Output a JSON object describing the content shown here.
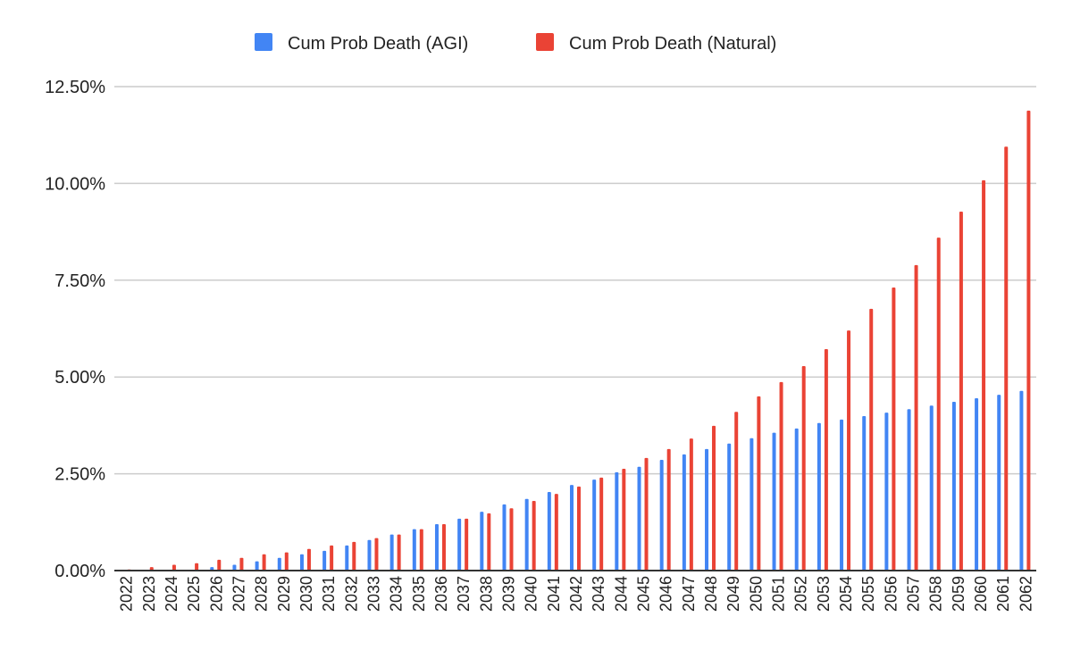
{
  "chart_data": {
    "type": "bar",
    "title": "",
    "xlabel": "",
    "ylabel": "",
    "ylim": [
      0,
      12.5
    ],
    "yticks": [
      "0.00%",
      "2.50%",
      "5.00%",
      "7.50%",
      "10.00%",
      "12.50%"
    ],
    "ytick_values": [
      0,
      2.5,
      5,
      7.5,
      10,
      12.5
    ],
    "grid": true,
    "legend_position": "top-center",
    "categories": [
      "2022",
      "2023",
      "2024",
      "2025",
      "2026",
      "2027",
      "2028",
      "2029",
      "2030",
      "2031",
      "2032",
      "2033",
      "2034",
      "2035",
      "2036",
      "2037",
      "2038",
      "2039",
      "2040",
      "2041",
      "2042",
      "2043",
      "2044",
      "2045",
      "2046",
      "2047",
      "2048",
      "2049",
      "2050",
      "2051",
      "2052",
      "2053",
      "2054",
      "2055",
      "2056",
      "2057",
      "2058",
      "2059",
      "2060",
      "2061",
      "2062"
    ],
    "series": [
      {
        "name": "Cum Prob Death (AGI)",
        "color": "#4285f4",
        "values": [
          0,
          0,
          0,
          0.02,
          0.09,
          0.15,
          0.24,
          0.33,
          0.42,
          0.51,
          0.65,
          0.79,
          0.93,
          1.07,
          1.2,
          1.34,
          1.52,
          1.71,
          1.85,
          2.03,
          2.21,
          2.35,
          2.54,
          2.68,
          2.86,
          3.0,
          3.14,
          3.28,
          3.42,
          3.56,
          3.67,
          3.81,
          3.9,
          3.99,
          4.08,
          4.17,
          4.26,
          4.36,
          4.45,
          4.54,
          4.64
        ]
      },
      {
        "name": "Cum Prob Death (Natural)",
        "color": "#ea4335",
        "values": [
          0.03,
          0.09,
          0.15,
          0.19,
          0.28,
          0.33,
          0.42,
          0.47,
          0.56,
          0.65,
          0.74,
          0.84,
          0.93,
          1.07,
          1.2,
          1.34,
          1.48,
          1.61,
          1.8,
          1.98,
          2.17,
          2.4,
          2.63,
          2.91,
          3.14,
          3.41,
          3.74,
          4.1,
          4.5,
          4.87,
          5.28,
          5.72,
          6.2,
          6.76,
          7.31,
          7.89,
          8.6,
          9.27,
          10.08,
          10.95,
          11.88
        ]
      }
    ]
  }
}
